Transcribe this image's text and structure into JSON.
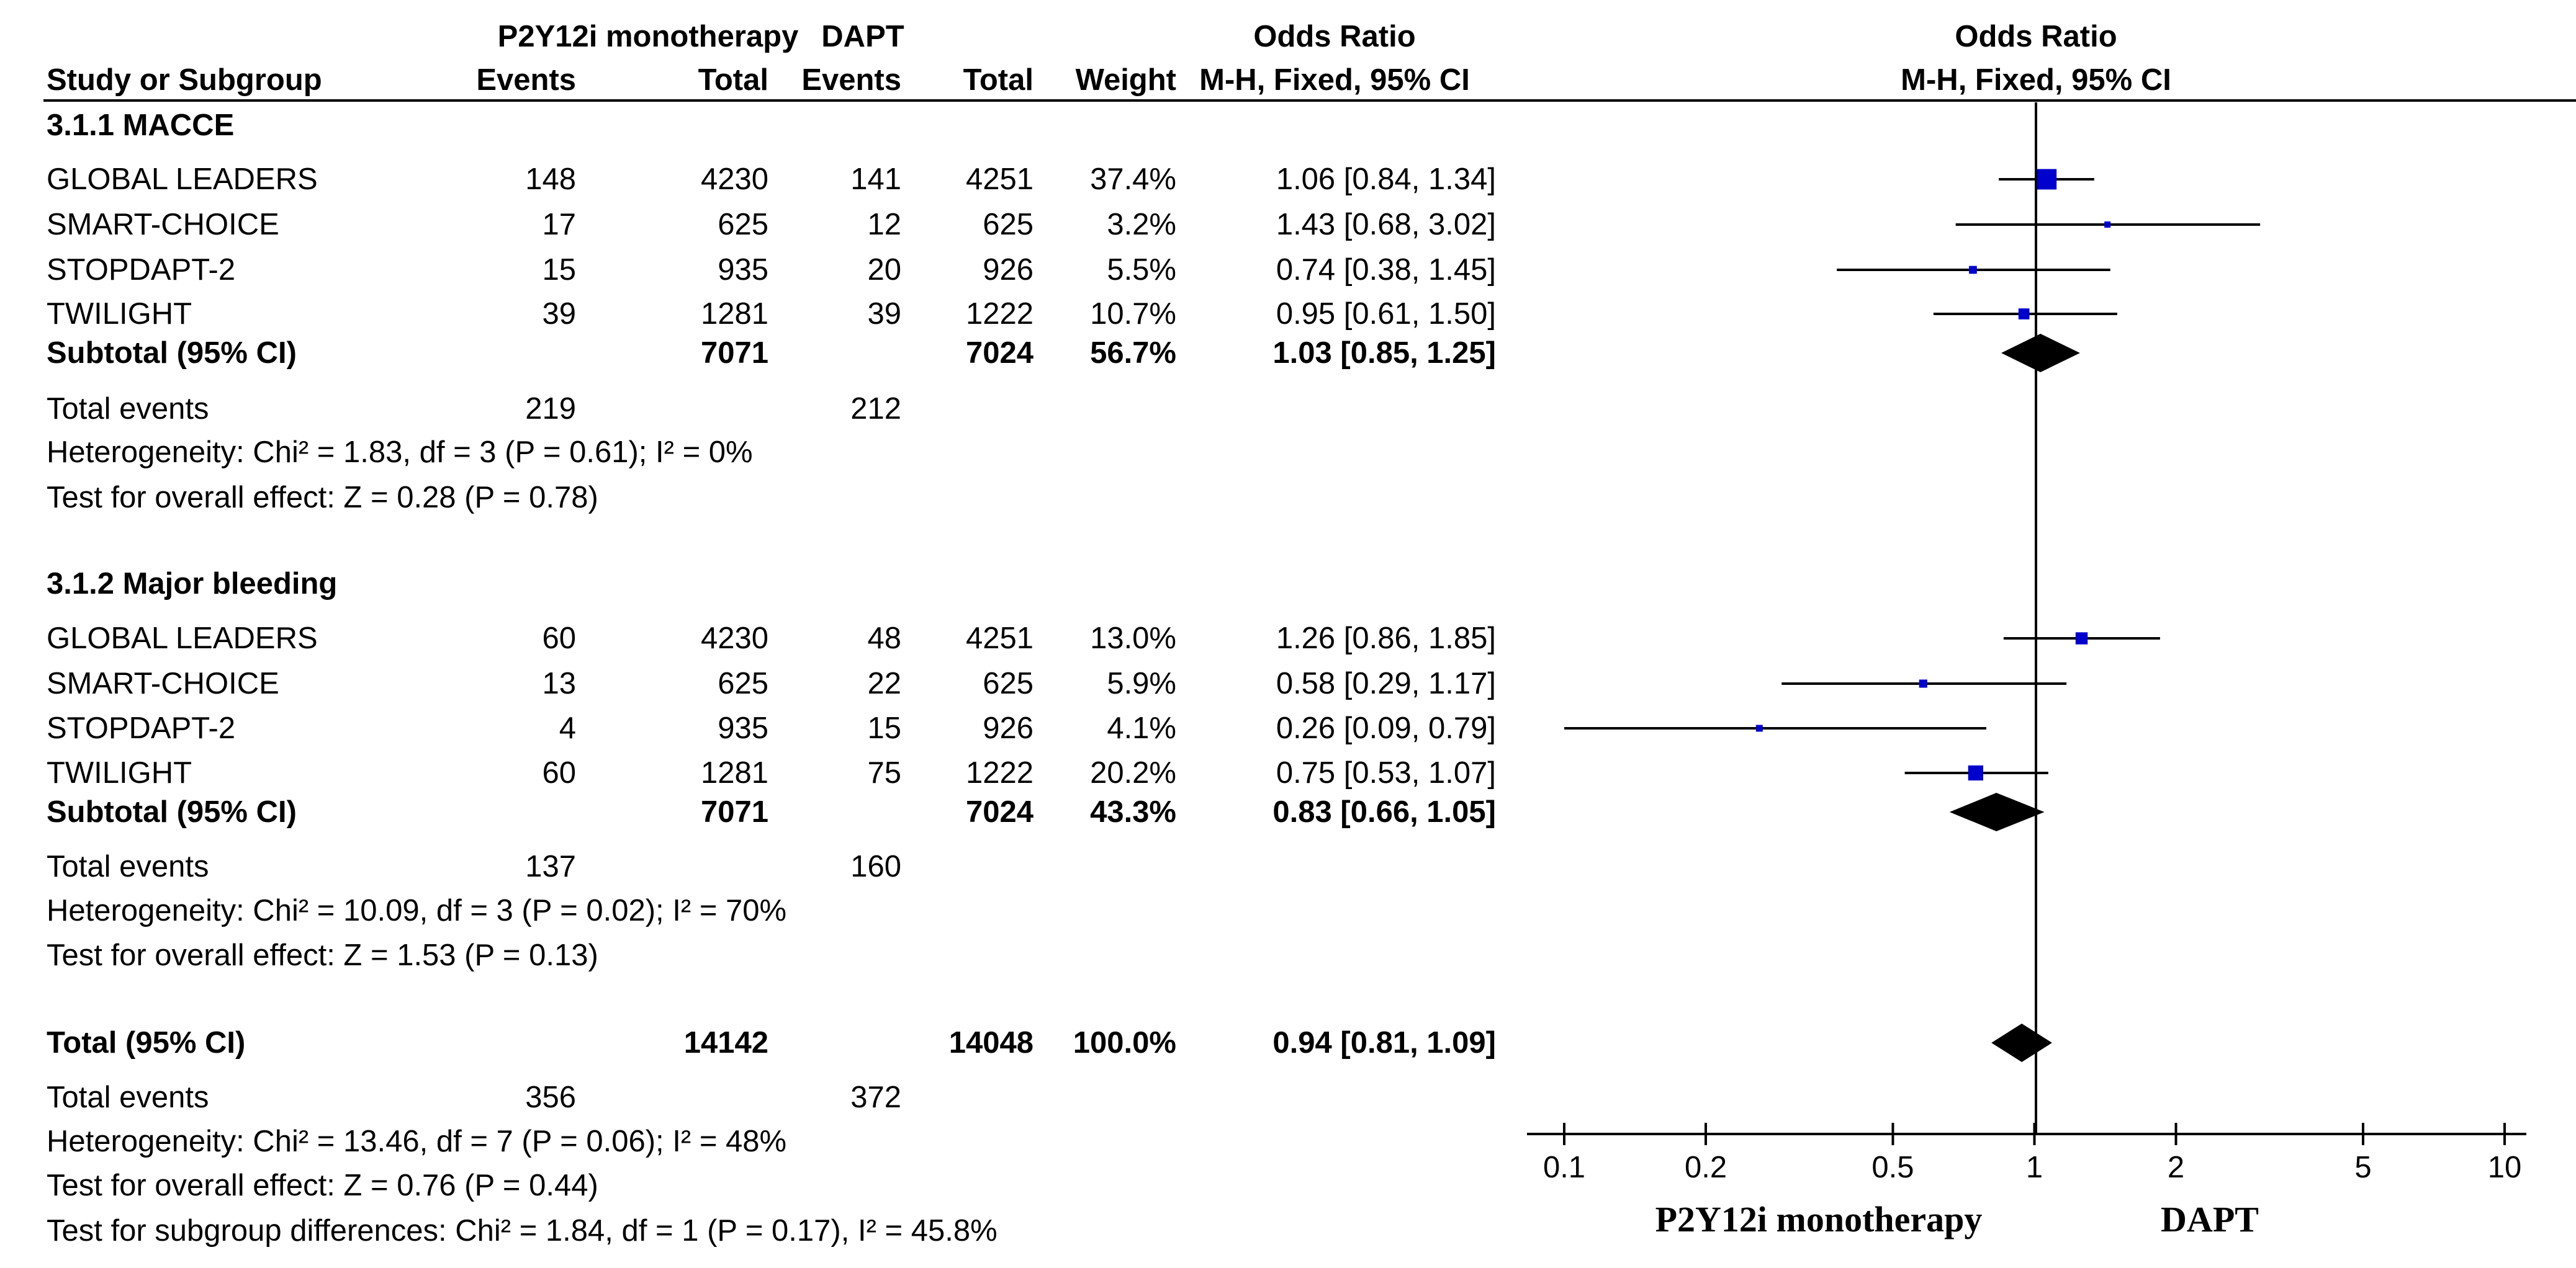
{
  "chart_data": {
    "type": "forest",
    "title": "Odds Ratio",
    "method_label": "M-H, Fixed, 95% CI",
    "headers": {
      "group1": "P2Y12i monotherapy",
      "group2": "DAPT",
      "study": "Study or Subgroup",
      "events": "Events",
      "total": "Total",
      "weight": "Weight",
      "or_title": "Odds Ratio",
      "or_method": "M-H, Fixed, 95% CI"
    },
    "axis": {
      "scale": "log",
      "xlim": [
        0.1,
        10
      ],
      "ticks": [
        {
          "value": 0.1,
          "label": "0.1"
        },
        {
          "value": 0.2,
          "label": "0.2"
        },
        {
          "value": 0.5,
          "label": "0.5"
        },
        {
          "value": 1,
          "label": "1"
        },
        {
          "value": 2,
          "label": "2"
        },
        {
          "value": 5,
          "label": "5"
        },
        {
          "value": 10,
          "label": "10"
        }
      ],
      "favours_left": "P2Y12i monotherapy",
      "favours_right": "DAPT"
    },
    "rows": [
      {
        "kind": "subgroup",
        "label": "3.1.1 MACCE"
      },
      {
        "kind": "study",
        "label": "GLOBAL LEADERS",
        "e1": "148",
        "n1": "4230",
        "e2": "141",
        "n2": "4251",
        "weight": "37.4%",
        "ci_text": "1.06 [0.84, 1.34]",
        "or": 1.06,
        "lo": 0.84,
        "hi": 1.34,
        "w": 37.4
      },
      {
        "kind": "study",
        "label": "SMART-CHOICE",
        "e1": "17",
        "n1": "625",
        "e2": "12",
        "n2": "625",
        "weight": "3.2%",
        "ci_text": "1.43 [0.68, 3.02]",
        "or": 1.43,
        "lo": 0.68,
        "hi": 3.02,
        "w": 3.2
      },
      {
        "kind": "study",
        "label": "STOPDAPT-2",
        "e1": "15",
        "n1": "935",
        "e2": "20",
        "n2": "926",
        "weight": "5.5%",
        "ci_text": "0.74 [0.38, 1.45]",
        "or": 0.74,
        "lo": 0.38,
        "hi": 1.45,
        "w": 5.5
      },
      {
        "kind": "study",
        "label": "TWILIGHT",
        "e1": "39",
        "n1": "1281",
        "e2": "39",
        "n2": "1222",
        "weight": "10.7%",
        "ci_text": "0.95 [0.61, 1.50]",
        "or": 0.95,
        "lo": 0.61,
        "hi": 1.5,
        "w": 10.7
      },
      {
        "kind": "subtotal",
        "label": "Subtotal (95% CI)",
        "n1": "7071",
        "n2": "7024",
        "weight": "56.7%",
        "ci_text": "1.03 [0.85, 1.25]",
        "or": 1.03,
        "lo": 0.85,
        "hi": 1.25
      },
      {
        "kind": "events",
        "label": "Total events",
        "e1": "219",
        "e2": "212"
      },
      {
        "kind": "text",
        "label": "Heterogeneity: Chi² = 1.83, df = 3 (P = 0.61); I² = 0%"
      },
      {
        "kind": "text",
        "label": "Test for overall effect: Z = 0.28 (P = 0.78)"
      },
      {
        "kind": "blank"
      },
      {
        "kind": "subgroup",
        "label": "3.1.2 Major bleeding"
      },
      {
        "kind": "study",
        "label": "GLOBAL LEADERS",
        "e1": "60",
        "n1": "4230",
        "e2": "48",
        "n2": "4251",
        "weight": "13.0%",
        "ci_text": "1.26 [0.86, 1.85]",
        "or": 1.26,
        "lo": 0.86,
        "hi": 1.85,
        "w": 13.0
      },
      {
        "kind": "study",
        "label": "SMART-CHOICE",
        "e1": "13",
        "n1": "625",
        "e2": "22",
        "n2": "625",
        "weight": "5.9%",
        "ci_text": "0.58 [0.29, 1.17]",
        "or": 0.58,
        "lo": 0.29,
        "hi": 1.17,
        "w": 5.9
      },
      {
        "kind": "study",
        "label": "STOPDAPT-2",
        "e1": "4",
        "n1": "935",
        "e2": "15",
        "n2": "926",
        "weight": "4.1%",
        "ci_text": "0.26 [0.09, 0.79]",
        "or": 0.26,
        "lo": 0.09,
        "hi": 0.79,
        "w": 4.1
      },
      {
        "kind": "study",
        "label": "TWILIGHT",
        "e1": "60",
        "n1": "1281",
        "e2": "75",
        "n2": "1222",
        "weight": "20.2%",
        "ci_text": "0.75 [0.53, 1.07]",
        "or": 0.75,
        "lo": 0.53,
        "hi": 1.07,
        "w": 20.2
      },
      {
        "kind": "subtotal",
        "label": "Subtotal (95% CI)",
        "n1": "7071",
        "n2": "7024",
        "weight": "43.3%",
        "ci_text": "0.83 [0.66, 1.05]",
        "or": 0.83,
        "lo": 0.66,
        "hi": 1.05
      },
      {
        "kind": "events",
        "label": "Total events",
        "e1": "137",
        "e2": "160"
      },
      {
        "kind": "text",
        "label": "Heterogeneity: Chi² = 10.09, df = 3 (P = 0.02); I² = 70%"
      },
      {
        "kind": "text",
        "label": "Test for overall effect: Z = 1.53 (P = 0.13)"
      },
      {
        "kind": "blank"
      },
      {
        "kind": "subtotal",
        "label": "Total (95% CI)",
        "n1": "14142",
        "n2": "14048",
        "weight": "100.0%",
        "ci_text": "0.94 [0.81, 1.09]",
        "or": 0.94,
        "lo": 0.81,
        "hi": 1.09
      },
      {
        "kind": "events",
        "label": "Total events",
        "e1": "356",
        "e2": "372"
      },
      {
        "kind": "text",
        "label": "Heterogeneity: Chi² = 13.46, df = 7 (P = 0.06); I² = 48%"
      },
      {
        "kind": "text",
        "label": "Test for overall effect: Z = 0.76 (P = 0.44)"
      },
      {
        "kind": "text",
        "label": "Test for subgroup differences: Chi² = 1.84, df = 1 (P = 0.17), I² = 45.8%"
      }
    ]
  },
  "colors": {
    "marker": "#0000cc",
    "diamond": "#000000",
    "text": "#000000",
    "background": "#ffffff"
  }
}
